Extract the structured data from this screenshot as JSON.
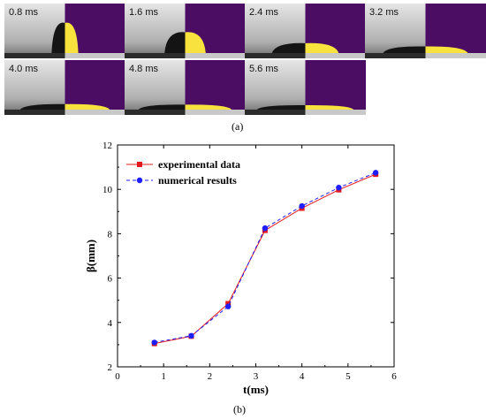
{
  "panel_a": {
    "label": "(a)",
    "frames": [
      {
        "time": "0.8 ms",
        "spread": 0.22,
        "height": 0.55
      },
      {
        "time": "1.6 ms",
        "spread": 0.34,
        "height": 0.38
      },
      {
        "time": "2.4 ms",
        "spread": 0.55,
        "height": 0.18
      },
      {
        "time": "3.2 ms",
        "spread": 0.7,
        "height": 0.12
      },
      {
        "time": "4.0 ms",
        "spread": 0.74,
        "height": 0.1
      },
      {
        "time": "4.8 ms",
        "spread": 0.77,
        "height": 0.09
      },
      {
        "time": "5.6 ms",
        "spread": 0.8,
        "height": 0.08
      }
    ],
    "sim_color": "#4b0d63",
    "drop_color": "#f7e23e"
  },
  "panel_b": {
    "label": "(b)"
  },
  "chart_data": {
    "type": "line",
    "xlabel": "t(ms)",
    "ylabel": "β(mm)",
    "xlim": [
      0,
      6
    ],
    "ylim": [
      2,
      12
    ],
    "xticks": [
      "0",
      "1",
      "2",
      "3",
      "4",
      "5",
      "6"
    ],
    "yticks": [
      "2",
      "4",
      "6",
      "8",
      "10",
      "12"
    ],
    "x": [
      0.8,
      1.6,
      2.4,
      3.2,
      4.0,
      4.8,
      5.6
    ],
    "series": [
      {
        "name": "experimental data",
        "values": [
          3.05,
          3.38,
          4.85,
          8.15,
          9.15,
          9.98,
          10.68
        ],
        "color": "#e3191c",
        "marker": "square",
        "dash": "solid"
      },
      {
        "name": "numerical results",
        "values": [
          3.1,
          3.4,
          4.72,
          8.25,
          9.25,
          10.08,
          10.75
        ],
        "color": "#1e1eff",
        "marker": "circle",
        "dash": "dashed"
      }
    ],
    "legend": "top-left",
    "grid": false
  }
}
